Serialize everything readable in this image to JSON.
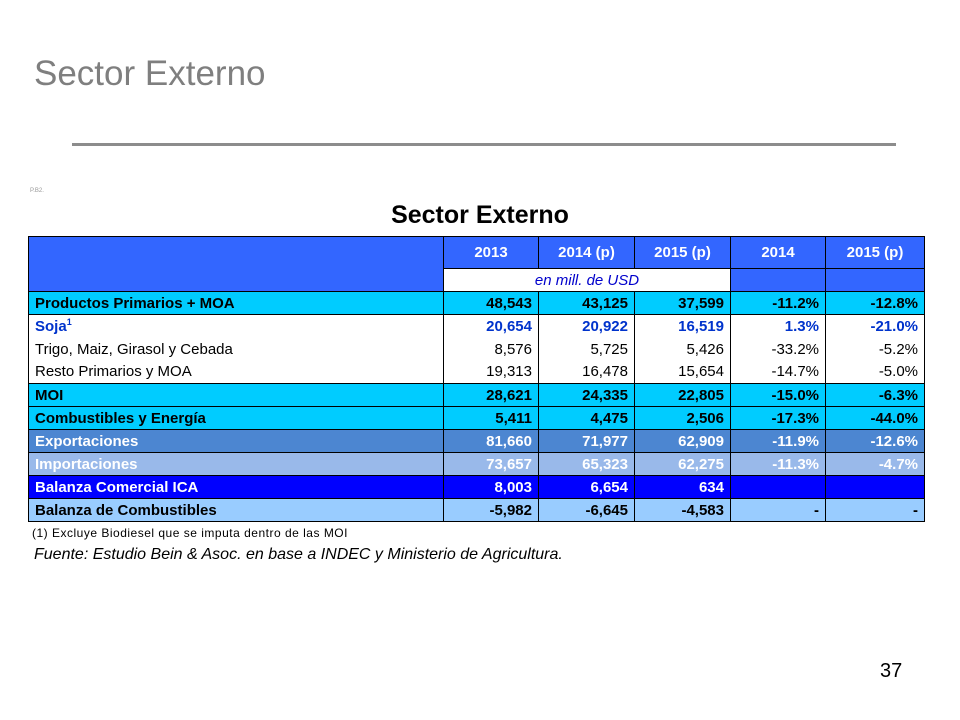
{
  "slide": {
    "title": "Sector Externo",
    "tag": "P.B2.",
    "page_number": "37"
  },
  "table": {
    "title": "Sector Externo",
    "columns": [
      "2013",
      "2014 (p)",
      "2015 (p)",
      "2014",
      "2015 (p)"
    ],
    "unit_note": "en mill. de USD",
    "rows": [
      {
        "label": "Productos Primarios + MOA",
        "sup": "",
        "values": [
          "48,543",
          "43,125",
          "37,599",
          "-11.2%",
          "-12.8%"
        ]
      },
      {
        "label": "Soja",
        "sup": "1",
        "values": [
          "20,654",
          "20,922",
          "16,519",
          "1.3%",
          "-21.0%"
        ]
      },
      {
        "label": "Trigo, Maiz, Girasol y Cebada",
        "sup": "",
        "values": [
          "8,576",
          "5,725",
          "5,426",
          "-33.2%",
          "-5.2%"
        ]
      },
      {
        "label": "Resto Primarios y MOA",
        "sup": "",
        "values": [
          "19,313",
          "16,478",
          "15,654",
          "-14.7%",
          "-5.0%"
        ]
      },
      {
        "label": "MOI",
        "sup": "",
        "values": [
          "28,621",
          "24,335",
          "22,805",
          "-15.0%",
          "-6.3%"
        ]
      },
      {
        "label": "Combustibles y Energía",
        "sup": "",
        "values": [
          "5,411",
          "4,475",
          "2,506",
          "-17.3%",
          "-44.0%"
        ]
      },
      {
        "label": "Exportaciones",
        "sup": "",
        "values": [
          "81,660",
          "71,977",
          "62,909",
          "-11.9%",
          "-12.6%"
        ]
      },
      {
        "label": "Importaciones",
        "sup": "",
        "values": [
          "73,657",
          "65,323",
          "62,275",
          "-11.3%",
          "-4.7%"
        ]
      },
      {
        "label": "Balanza Comercial ICA",
        "sup": "",
        "values": [
          "8,003",
          "6,654",
          "634",
          "",
          ""
        ]
      },
      {
        "label": "Balanza de Combustibles",
        "sup": "",
        "values": [
          "-5,982",
          "-6,645",
          "-4,583",
          "-",
          "-"
        ]
      }
    ],
    "footnote": "(1) Excluye Biodiesel que se imputa dentro de las MOI",
    "source": "Fuente: Estudio Bein & Asoc. en base a INDEC y Ministerio de Agricultura."
  },
  "colors": {
    "header_blue": "#3366ff",
    "cyan": "#00ccff",
    "steel_blue": "#4c86d1",
    "light_blue": "#99b9ea",
    "royal_blue": "#0000ff",
    "pale_blue": "#99ccff",
    "soja_text": "#0033cc"
  }
}
